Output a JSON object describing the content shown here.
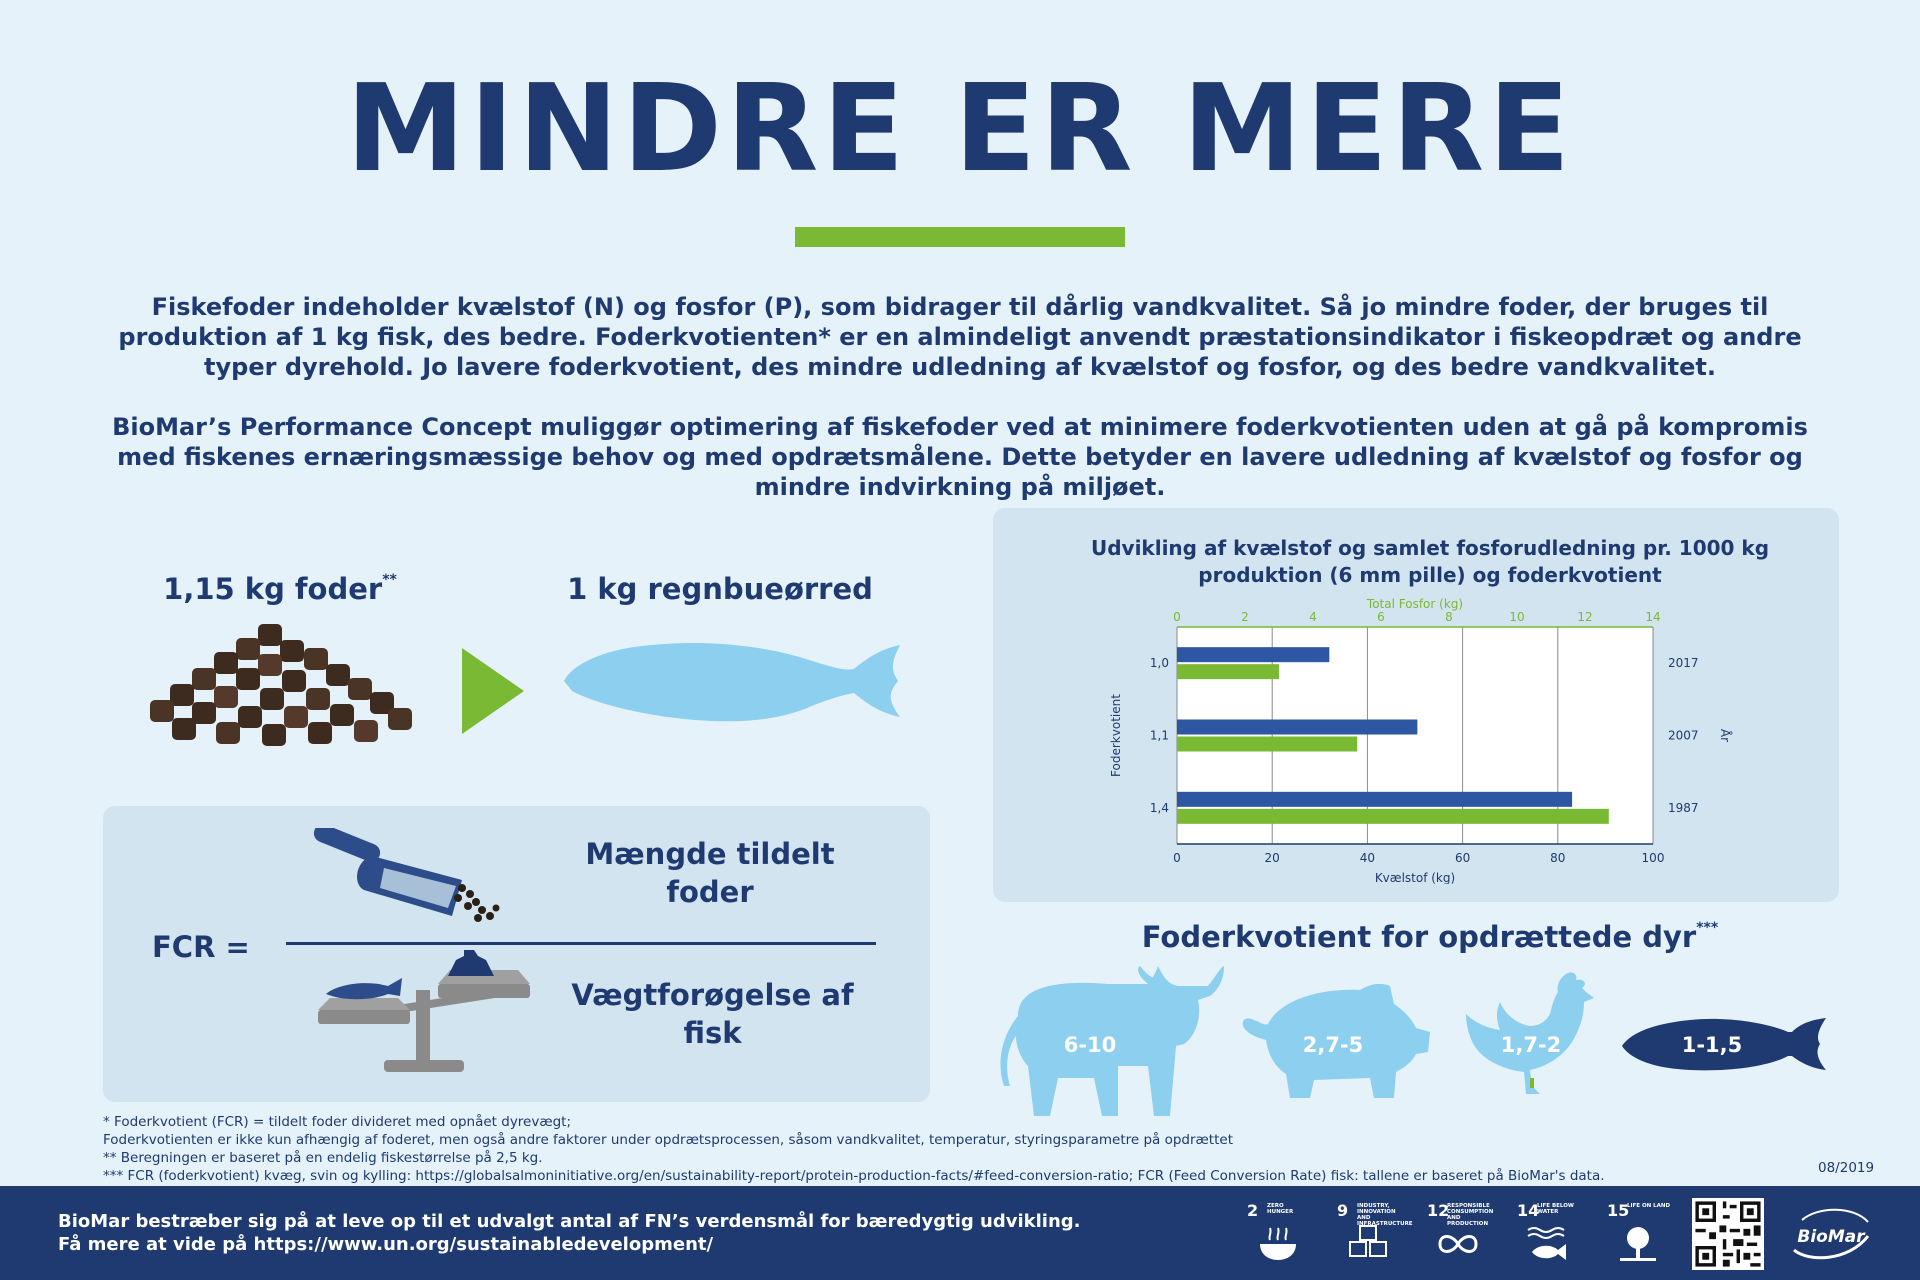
{
  "title": "MINDRE ER MERE",
  "paragraph1": "Fiskefoder indeholder kvælstof (N) og fosfor (P), som bidrager til dårlig vandkvalitet. Så jo mindre foder, der bruges til produktion af 1 kg fisk, des bedre. Foderkvotienten* er en almindeligt anvendt præstationsindikator i fiskeopdræt og andre typer dyrehold. Jo lavere foderkvotient, des mindre udledning af kvælstof og fosfor, og des bedre vandkvalitet.",
  "paragraph2": "BioMar’s Performance Concept muliggør optimering af fiskefoder ved at minimere foderkvotienten uden at gå på kompromis med fiskenes ernæringsmæssige behov og med opdrætsmålene. Dette betyder en lavere udledning af kvælstof og fosfor og mindre indvirkning på miljøet.",
  "feed": {
    "label": "1,15 kg foder",
    "mark": "**"
  },
  "fish": {
    "label": "1 kg regnbueørred"
  },
  "fcr": {
    "label": "FCR =",
    "numerator": "Mængde tildelt foder",
    "denominator": "Vægtforøgelse af fisk"
  },
  "chart_data": {
    "type": "bar",
    "orientation": "horizontal",
    "title": "Udvikling af kvælstof og samlet fosforudledning pr. 1000 kg produktion (6 mm pille) og foderkvotient",
    "categories": [
      "1,0",
      "1,1",
      "1,4"
    ],
    "years": [
      "2017",
      "2007",
      "1987"
    ],
    "ylabel": "Foderkvotient",
    "ylabel_right": "År",
    "series": [
      {
        "name": "Kvælstof (kg)",
        "axis": "bottom",
        "color": "#2d56a3",
        "values": [
          32,
          50.5,
          83
        ]
      },
      {
        "name": "Total Fosfor (kg)",
        "axis": "top",
        "color": "#7ab933",
        "values": [
          3,
          5.3,
          12.7
        ]
      }
    ],
    "bottom_axis": {
      "label": "Kvælstof (kg)",
      "range": [
        0,
        100
      ],
      "ticks": [
        "0",
        "20",
        "40",
        "60",
        "80",
        "100"
      ]
    },
    "top_axis": {
      "label": "Total Fosfor (kg)",
      "range": [
        0,
        14
      ],
      "ticks": [
        "0",
        "2",
        "4",
        "6",
        "8",
        "10",
        "12",
        "14"
      ]
    },
    "grid": true
  },
  "animals": {
    "title": "Foderkvotient for opdrættede dyr",
    "mark": "***",
    "items": [
      {
        "name": "cow",
        "value": "6-10"
      },
      {
        "name": "pig",
        "value": "2,7-5"
      },
      {
        "name": "chicken",
        "value": "1,7-2"
      },
      {
        "name": "fish",
        "value": "1-1,5"
      }
    ]
  },
  "footnotes": [
    "* Foderkvotient (FCR) = tildelt foder divideret med opnået dyrevægt;",
    "Foderkvotienten er ikke kun afhængig af foderet, men også andre faktorer under opdrætsprocessen, såsom vandkvalitet, temperatur, styringsparametre på opdrættet",
    "** Beregningen er baseret på en endelig fiskestørrelse på 2,5 kg.",
    "*** FCR (foderkvotient) kvæg, svin og kylling: https://globalsalmoninitiative.org/en/sustainability-report/protein-production-facts/#feed-conversion-ratio; FCR (Feed Conversion Rate) fisk: tallene er baseret på BioMar's data."
  ],
  "date": "08/2019",
  "footer": {
    "line1": "BioMar bestræber sig på at leve op til et udvalgt antal af FN’s verdensmål for bæredygtig udvikling.",
    "line2": "Få mere at vide på https://www.un.org/sustainabledevelopment/"
  },
  "sdgs": [
    {
      "num": "2",
      "text": "ZERO HUNGER",
      "color": "#d3a029",
      "icon": "bowl-icon"
    },
    {
      "num": "9",
      "text": "INDUSTRY, INNOVATION AND INFRASTRUCTURE",
      "color": "#f36d25",
      "icon": "cubes-icon"
    },
    {
      "num": "12",
      "text": "RESPONSIBLE CONSUMPTION AND PRODUCTION",
      "color": "#bf8b2e",
      "icon": "infinity-icon"
    },
    {
      "num": "14",
      "text": "LIFE BELOW WATER",
      "color": "#0a97d9",
      "icon": "fish-water-icon"
    },
    {
      "num": "15",
      "text": "LIFE ON LAND",
      "color": "#56c02b",
      "icon": "tree-icon"
    }
  ],
  "logo": {
    "text": "BioMar"
  },
  "colors": {
    "navy": "#1e3a70",
    "green": "#7ab933",
    "light_blue": "#8ccfee",
    "background": "#e6f2fa",
    "panel": "#d1e4ef"
  }
}
